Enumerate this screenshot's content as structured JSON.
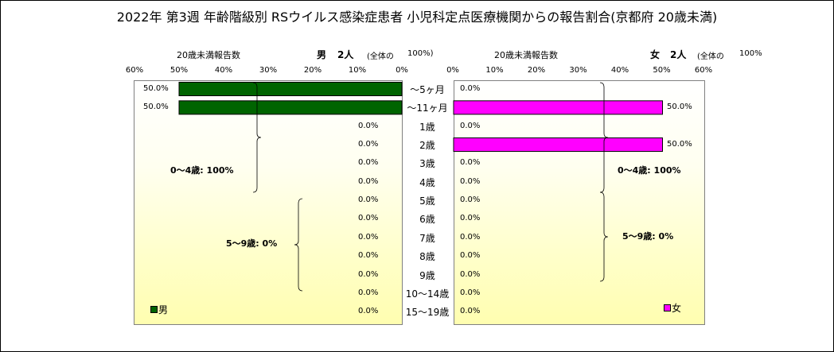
{
  "title": "2022年 第3週 年齢階級別 RSウイルス感染症患者 小児科定点医療機関からの報告割合(京都府 20歳未満)",
  "categories": [
    "～5ヶ月",
    "～11ヶ月",
    "1歳",
    "2歳",
    "3歳",
    "4歳",
    "5歳",
    "6歳",
    "7歳",
    "8歳",
    "9歳",
    "10～14歳",
    "15～19歳"
  ],
  "left_ticks": [
    "60%",
    "50%",
    "40%",
    "30%",
    "20%",
    "10%",
    "0%"
  ],
  "right_ticks": [
    "0%",
    "10%",
    "20%",
    "30%",
    "40%",
    "50%",
    "60%"
  ],
  "male_panel": {
    "subtitle": "20歳未満報告数",
    "header_label": "男",
    "header_count": "2人",
    "header_note": "(全体の",
    "header_pct": "100%)",
    "legend": "男",
    "group_0_4": "0～4歳: 100%",
    "group_5_9": "5～9歳: 0%",
    "pct_labels": [
      "50.0%",
      "50.0%",
      "0.0%",
      "0.0%",
      "0.0%",
      "0.0%",
      "0.0%",
      "0.0%",
      "0.0%",
      "0.0%",
      "0.0%",
      "0.0%",
      "0.0%"
    ]
  },
  "female_panel": {
    "subtitle": "20歳未満報告数",
    "header_label": "女",
    "header_count": "2人",
    "header_note": "(全体の",
    "header_pct": "100%",
    "legend": "女",
    "group_0_4": "0～4歳: 100%",
    "group_5_9": "5～9歳: 0%",
    "pct_labels": [
      "0.0%",
      "50.0%",
      "0.0%",
      "50.0%",
      "0.0%",
      "0.0%",
      "0.0%",
      "0.0%",
      "0.0%",
      "0.0%",
      "0.0%",
      "0.0%",
      "0.0%"
    ]
  },
  "colors": {
    "male": "#006400",
    "female": "#ff00ff"
  },
  "chart_data": [
    {
      "type": "bar",
      "title": "男",
      "categories": [
        "～5ヶ月",
        "～11ヶ月",
        "1歳",
        "2歳",
        "3歳",
        "4歳",
        "5歳",
        "6歳",
        "7歳",
        "8歳",
        "9歳",
        "10～14歳",
        "15～19歳"
      ],
      "values": [
        50.0,
        50.0,
        0,
        0,
        0,
        0,
        0,
        0,
        0,
        0,
        0,
        0,
        0
      ],
      "xlabel": "20歳未満報告数",
      "xlim": [
        0,
        60
      ],
      "orientation": "horizontal-reversed",
      "grid": false
    },
    {
      "type": "bar",
      "title": "女",
      "categories": [
        "～5ヶ月",
        "～11ヶ月",
        "1歳",
        "2歳",
        "3歳",
        "4歳",
        "5歳",
        "6歳",
        "7歳",
        "8歳",
        "9歳",
        "10～14歳",
        "15～19歳"
      ],
      "values": [
        0,
        50.0,
        0,
        50.0,
        0,
        0,
        0,
        0,
        0,
        0,
        0,
        0,
        0
      ],
      "xlabel": "20歳未満報告数",
      "xlim": [
        0,
        60
      ],
      "orientation": "horizontal",
      "grid": false
    }
  ]
}
